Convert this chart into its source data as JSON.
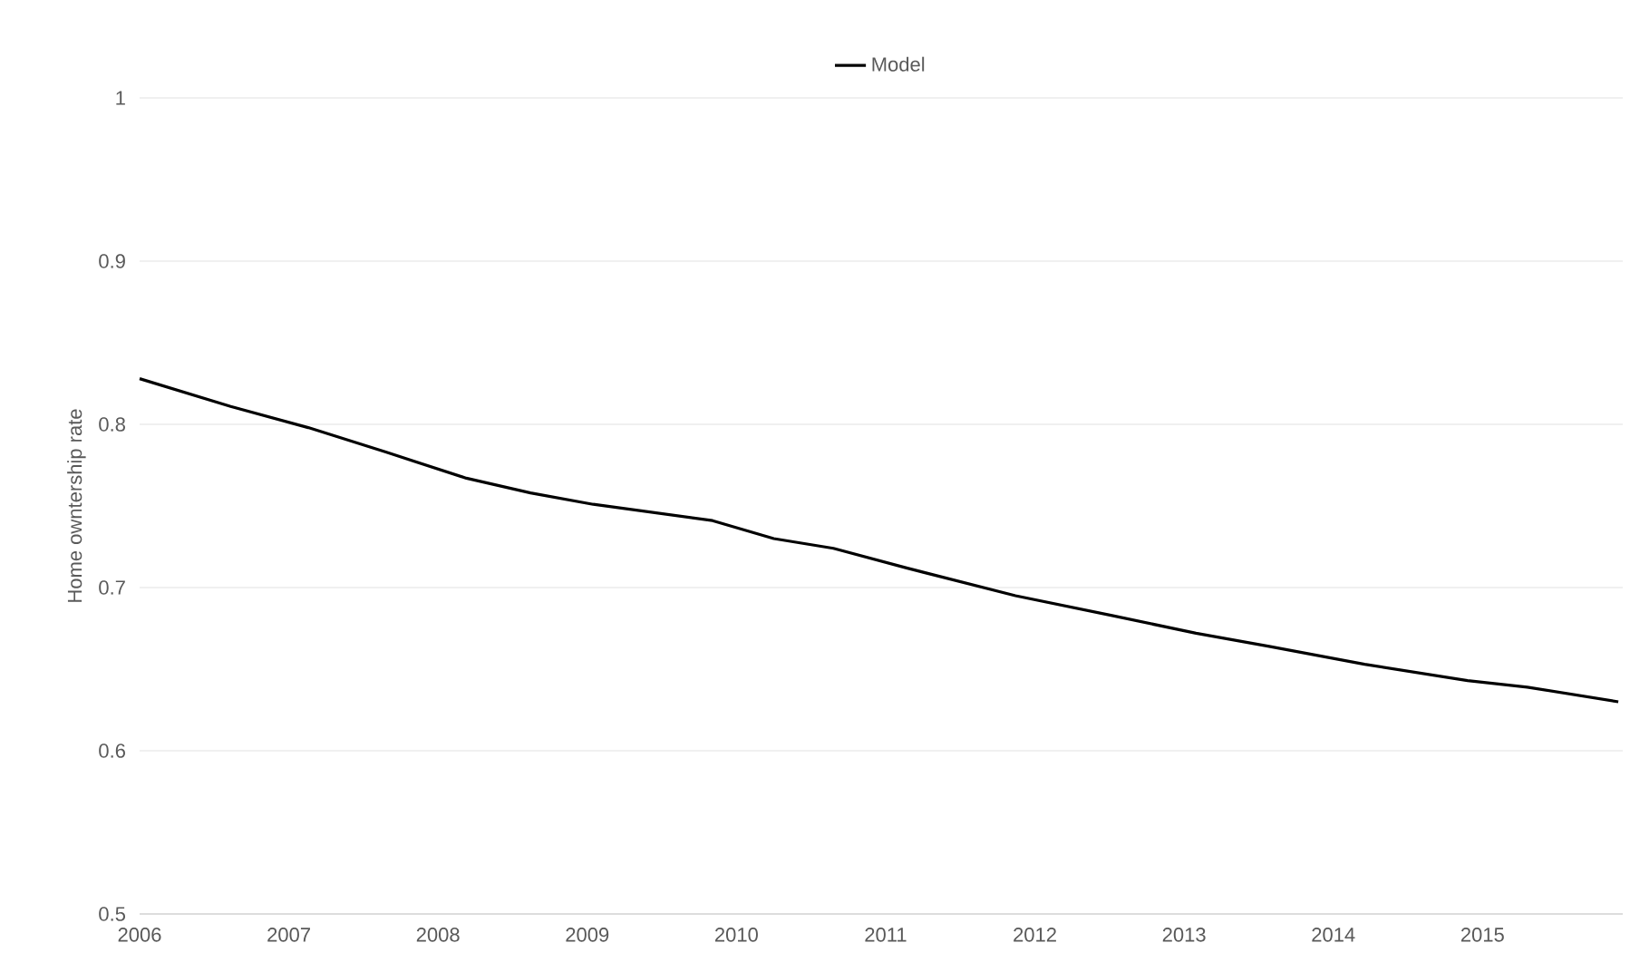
{
  "chart_data": {
    "type": "line",
    "ylabel": "Home owntership rate",
    "legend": "top",
    "grid": "y",
    "marker": "none",
    "line_style": "solid",
    "xlim": [
      2006,
      2015.94
    ],
    "xticks": [
      2006,
      2007,
      2008,
      2009,
      2010,
      2011,
      2012,
      2013,
      2014,
      2015
    ],
    "ylim": [
      0.5,
      1
    ],
    "yticks": [
      0.5,
      0.6,
      0.7,
      0.8,
      0.9,
      1
    ],
    "series": [
      {
        "name": "Model",
        "color": "#000000",
        "x": [
          2006.0,
          2006.61,
          2007.13,
          2007.65,
          2008.19,
          2008.62,
          2009.04,
          2009.84,
          2010.25,
          2010.65,
          2011.14,
          2011.87,
          2012.51,
          2013.08,
          2013.57,
          2014.21,
          2014.9,
          2015.3,
          2015.91
        ],
        "values": [
          0.828,
          0.811,
          0.798,
          0.783,
          0.767,
          0.758,
          0.751,
          0.741,
          0.73,
          0.724,
          0.712,
          0.695,
          0.683,
          0.672,
          0.664,
          0.653,
          0.643,
          0.639,
          0.63
        ]
      }
    ]
  }
}
